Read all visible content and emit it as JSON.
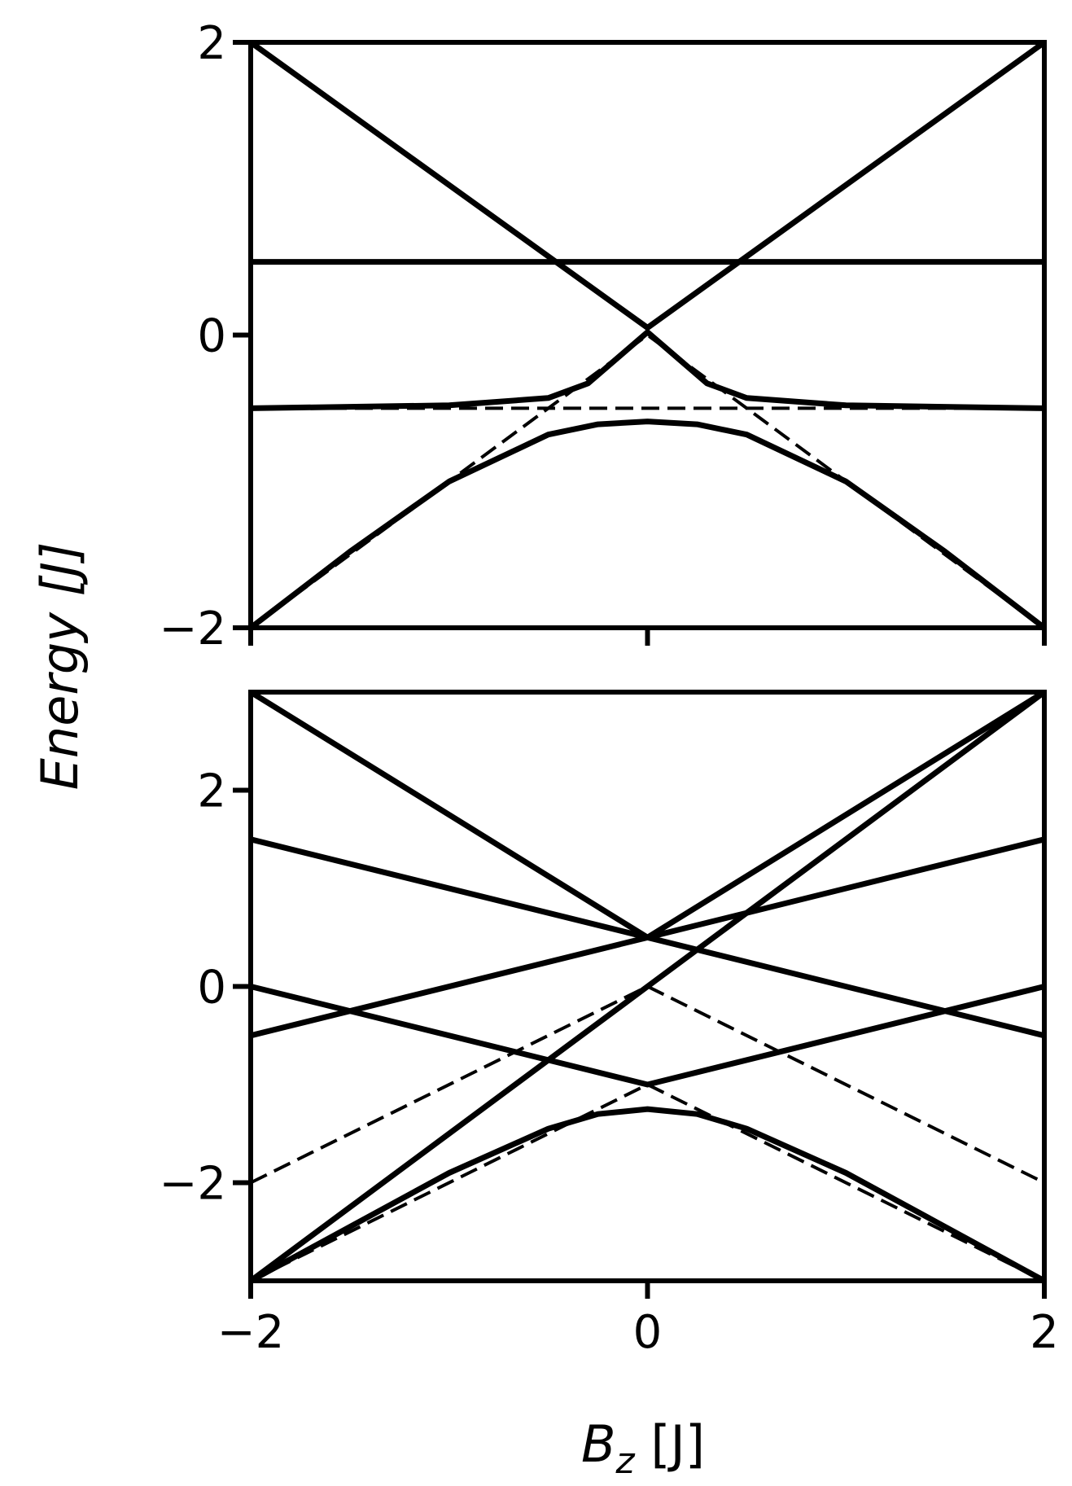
{
  "chart_data": [
    {
      "type": "line",
      "panel": "top",
      "x_range": [
        -2,
        2
      ],
      "ylim": [
        -2,
        2
      ],
      "x_ticks": [
        -2,
        0,
        2
      ],
      "x_tick_labels": [
        "",
        "",
        ""
      ],
      "y_ticks": [
        -2,
        0,
        2
      ],
      "y_tick_labels": [
        "−2",
        "0",
        "2"
      ],
      "grid": false,
      "series": [
        {
          "style": "solid",
          "x": [
            -2,
            2
          ],
          "y": [
            0.5,
            0.5
          ]
        },
        {
          "style": "solid",
          "x": [
            -2,
            0,
            2
          ],
          "y": [
            2,
            0.05,
            2
          ]
        },
        {
          "style": "solid",
          "x": [
            -2,
            -1,
            -0.5,
            -0.3,
            0,
            0.3,
            0.5,
            1,
            2
          ],
          "y": [
            -0.5,
            -0.48,
            -0.43,
            -0.33,
            0.02,
            -0.33,
            -0.43,
            -0.48,
            -0.5
          ]
        },
        {
          "style": "solid",
          "x": [
            -2,
            -1.5,
            -1,
            -0.5,
            -0.25,
            0,
            0.25,
            0.5,
            1,
            1.5,
            2
          ],
          "y": [
            -2,
            -1.48,
            -1.0,
            -0.68,
            -0.61,
            -0.59,
            -0.61,
            -0.68,
            -1.0,
            -1.48,
            -2
          ]
        },
        {
          "style": "dashed",
          "x": [
            -2,
            2
          ],
          "y": [
            -0.5,
            -0.5
          ]
        },
        {
          "style": "dashed",
          "x": [
            -2,
            0,
            2
          ],
          "y": [
            -2,
            0,
            -2
          ]
        }
      ]
    },
    {
      "type": "line",
      "panel": "bottom",
      "x_range": [
        -2,
        2
      ],
      "ylim": [
        -3,
        3
      ],
      "x_ticks": [
        -2,
        0,
        2
      ],
      "x_tick_labels": [
        "−2",
        "0",
        "2"
      ],
      "y_ticks": [
        -2,
        0,
        2
      ],
      "y_tick_labels": [
        "−2",
        "0",
        "2"
      ],
      "grid": false,
      "series": [
        {
          "style": "solid",
          "x": [
            -2,
            0,
            2
          ],
          "y": [
            3,
            0.5,
            3
          ]
        },
        {
          "style": "solid",
          "x": [
            -2,
            0,
            2
          ],
          "y": [
            -3,
            0,
            3
          ]
        },
        {
          "style": "solid",
          "x": [
            -2,
            0,
            2
          ],
          "y": [
            1.5,
            0.5,
            -0.5
          ]
        },
        {
          "style": "solid",
          "x": [
            -2,
            0,
            2
          ],
          "y": [
            -0.5,
            0.5,
            1.5
          ]
        },
        {
          "style": "solid",
          "x": [
            -2,
            0,
            2
          ],
          "y": [
            0,
            -1,
            0
          ]
        },
        {
          "style": "solid",
          "x": [
            -2,
            -1.5,
            -1,
            -0.5,
            -0.25,
            0,
            0.25,
            0.5,
            1,
            1.5,
            2
          ],
          "y": [
            -3,
            -2.45,
            -1.9,
            -1.45,
            -1.3,
            -1.25,
            -1.3,
            -1.45,
            -1.9,
            -2.45,
            -3
          ]
        },
        {
          "style": "dashed",
          "x": [
            -2,
            0,
            2
          ],
          "y": [
            -3,
            -1,
            -3
          ]
        },
        {
          "style": "dashed",
          "x": [
            -2,
            0,
            2
          ],
          "y": [
            -2,
            0,
            -2
          ]
        }
      ]
    }
  ],
  "ylabel": "Energy [J]",
  "xlabel": "B",
  "xlabel_subscript": "z",
  "xlabel_unit": " [J]"
}
